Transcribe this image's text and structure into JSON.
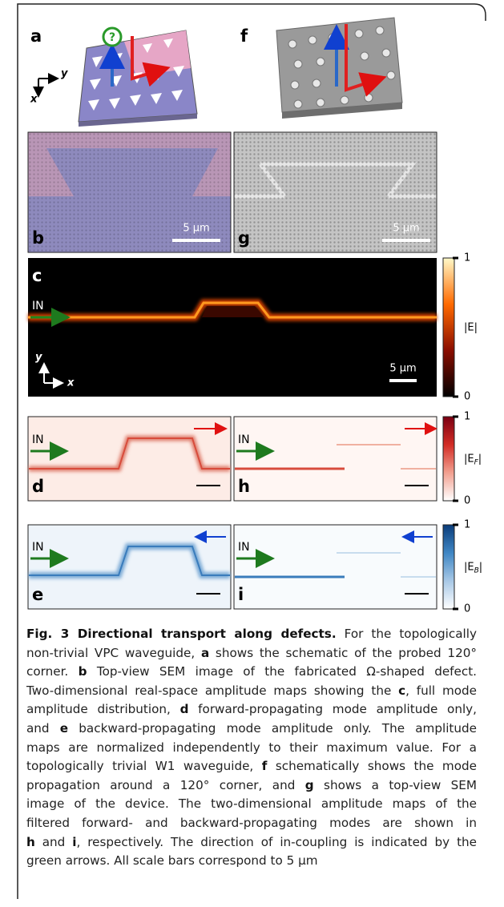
{
  "panels": {
    "labels": [
      "a",
      "f",
      "b",
      "g",
      "c",
      "d",
      "h",
      "e",
      "i"
    ],
    "axes_a": {
      "y": "y",
      "x": "x"
    },
    "axes_c": {
      "y": "y",
      "x": "x"
    },
    "a_question": "?",
    "scale_bars": [
      "5 μm",
      "5 μm",
      "5 μm"
    ],
    "in_labels": [
      "IN",
      "IN",
      "IN",
      "IN",
      "IN"
    ]
  },
  "colorbars": [
    {
      "label": [
        "|E|"
      ],
      "range": [
        0,
        1
      ],
      "ticks": [
        0,
        1
      ],
      "colors": [
        "#000000",
        "#8a0d00",
        "#ff6a00",
        "#fff9c8"
      ]
    },
    {
      "label": [
        "|E",
        "F",
        "|"
      ],
      "range": [
        0,
        1
      ],
      "ticks": [
        0,
        1
      ],
      "colors": [
        "#ffffff",
        "#f2a090",
        "#d22c25",
        "#7a0012"
      ]
    },
    {
      "label": [
        "|E",
        "B",
        "|"
      ],
      "range": [
        0,
        1
      ],
      "ticks": [
        0,
        1
      ],
      "colors": [
        "#ffffff",
        "#a8c8e6",
        "#3f86c4",
        "#0b3d7a"
      ]
    }
  ],
  "caption": {
    "lines": [
      [
        {
          "text": "Fig. 3 Directional transport along defects.",
          "bold": true
        },
        {
          "text": " For the topologically",
          "bold": false
        }
      ],
      [
        {
          "text": "non-trivial VPC waveguide, ",
          "bold": false
        },
        {
          "text": "a",
          "bold": true
        },
        {
          "text": " shows the schematic of the probed 120°",
          "bold": false
        }
      ],
      [
        {
          "text": "corner. ",
          "bold": false
        },
        {
          "text": "b",
          "bold": true
        },
        {
          "text": " Top-view SEM image of the fabricated Ω-shaped defect.",
          "bold": false
        }
      ],
      [
        {
          "text": "Two-dimensional real-space amplitude maps showing the ",
          "bold": false
        },
        {
          "text": "c",
          "bold": true
        },
        {
          "text": ", full mode",
          "bold": false
        }
      ],
      [
        {
          "text": "amplitude distribution, ",
          "bold": false
        },
        {
          "text": "d",
          "bold": true
        },
        {
          "text": " forward-propagating mode amplitude only,",
          "bold": false
        }
      ],
      [
        {
          "text": "and ",
          "bold": false
        },
        {
          "text": "e",
          "bold": true
        },
        {
          "text": " backward-propagating mode amplitude only. The amplitude",
          "bold": false
        }
      ],
      [
        {
          "text": "maps are normalized independently to their maximum value. For a",
          "bold": false
        }
      ],
      [
        {
          "text": "topologically trivial W1 waveguide, ",
          "bold": false
        },
        {
          "text": "f",
          "bold": true
        },
        {
          "text": " schematically shows the mode",
          "bold": false
        }
      ],
      [
        {
          "text": "propagation around a 120° corner, and ",
          "bold": false
        },
        {
          "text": "g",
          "bold": true
        },
        {
          "text": " shows a top-view SEM",
          "bold": false
        }
      ],
      [
        {
          "text": "image of the device. The two-dimensional amplitude maps of the",
          "bold": false
        }
      ],
      [
        {
          "text": "filtered forward- and backward-propagating modes are shown in",
          "bold": false
        }
      ],
      [
        {
          "text": "h",
          "bold": true
        },
        {
          "text": " and ",
          "bold": false
        },
        {
          "text": "i",
          "bold": true
        },
        {
          "text": ", respectively. The direction of in-coupling is indicated by the",
          "bold": false
        }
      ],
      [
        {
          "text": "green arrows. All scale bars correspond to 5 μm",
          "bold": false
        }
      ]
    ]
  }
}
